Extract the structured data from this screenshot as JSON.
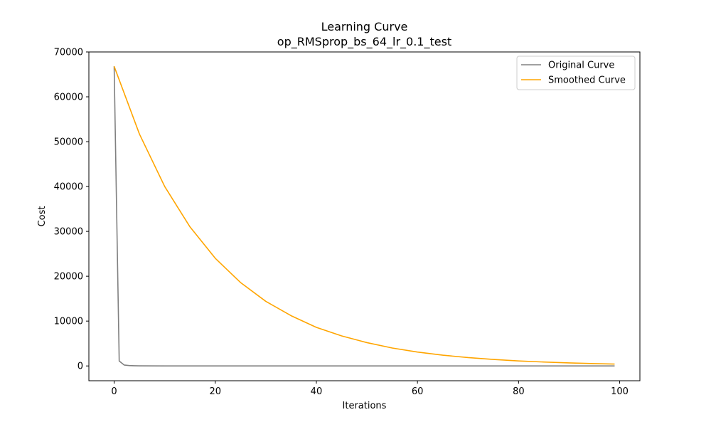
{
  "chart_data": {
    "type": "line",
    "title": "Learning Curve",
    "subtitle": "op_RMSprop_bs_64_lr_0.1_test",
    "xlabel": "Iterations",
    "ylabel": "Cost",
    "xlim": [
      -5,
      104
    ],
    "ylim": [
      -3300,
      70000
    ],
    "xticks": [
      0,
      20,
      40,
      60,
      80,
      100
    ],
    "yticks": [
      0,
      10000,
      20000,
      30000,
      40000,
      50000,
      60000,
      70000
    ],
    "grid": false,
    "legend_position": "top-right",
    "series": [
      {
        "name": "Original Curve",
        "color": "#808080",
        "x": [
          0,
          1,
          2,
          3,
          4,
          5,
          10,
          20,
          30,
          40,
          50,
          60,
          70,
          80,
          90,
          99
        ],
        "y": [
          66800,
          1100,
          200,
          80,
          40,
          20,
          10,
          5,
          5,
          5,
          5,
          5,
          5,
          5,
          5,
          5
        ]
      },
      {
        "name": "Smoothed Curve",
        "color": "#FFA500",
        "x": [
          0,
          5,
          10,
          15,
          20,
          25,
          30,
          35,
          40,
          45,
          50,
          55,
          60,
          65,
          70,
          75,
          80,
          85,
          90,
          95,
          99
        ],
        "y": [
          66800,
          51700,
          40000,
          31000,
          24000,
          18600,
          14400,
          11200,
          8600,
          6700,
          5200,
          4000,
          3100,
          2400,
          1860,
          1450,
          1120,
          870,
          670,
          520,
          420
        ]
      }
    ]
  }
}
